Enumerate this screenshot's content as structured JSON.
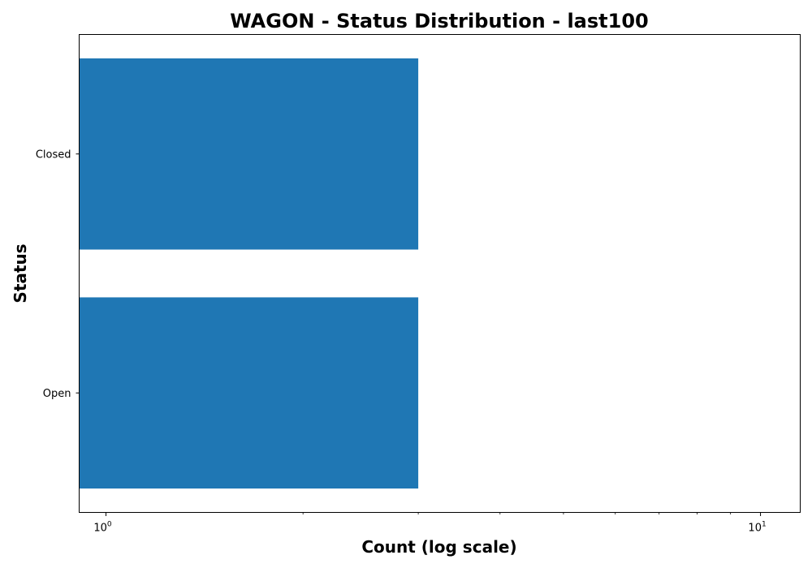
{
  "chart_data": {
    "type": "bar",
    "orientation": "horizontal",
    "title": "WAGON - Status Distribution - last100",
    "xlabel": "Count (log scale)",
    "ylabel": "Status",
    "x_scale": "log",
    "xlim": [
      0.91,
      11.5
    ],
    "categories": [
      "Closed",
      "Open"
    ],
    "series": [
      {
        "color": "#1f77b4",
        "values": [
          3,
          3
        ]
      }
    ],
    "x_major_ticks": [
      {
        "value": 1,
        "base": "10",
        "exponent": "0"
      },
      {
        "value": 10,
        "base": "10",
        "exponent": "1"
      }
    ],
    "x_minor_ticks": [
      2,
      3,
      4,
      5,
      6,
      7,
      8,
      9
    ],
    "grid": false,
    "legend": "none"
  }
}
